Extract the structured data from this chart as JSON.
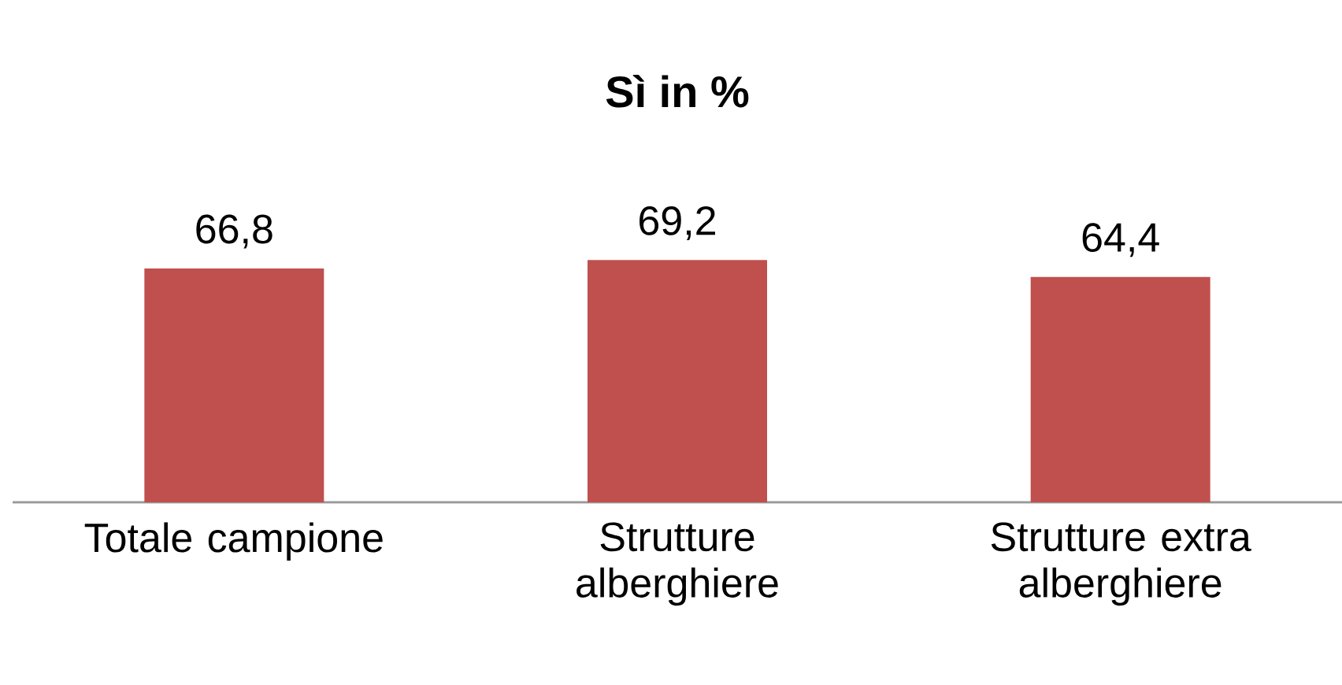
{
  "chart_data": {
    "type": "bar",
    "title": "**Sì in %**",
    "categories": [
      "Totale campione",
      "Strutture alberghiere",
      "Strutture extra alberghiere"
    ],
    "values": [
      66.8,
      69.2,
      64.4
    ],
    "value_labels": [
      "66,8",
      "69,2",
      "64,4"
    ],
    "color": "#c0504d"
  }
}
